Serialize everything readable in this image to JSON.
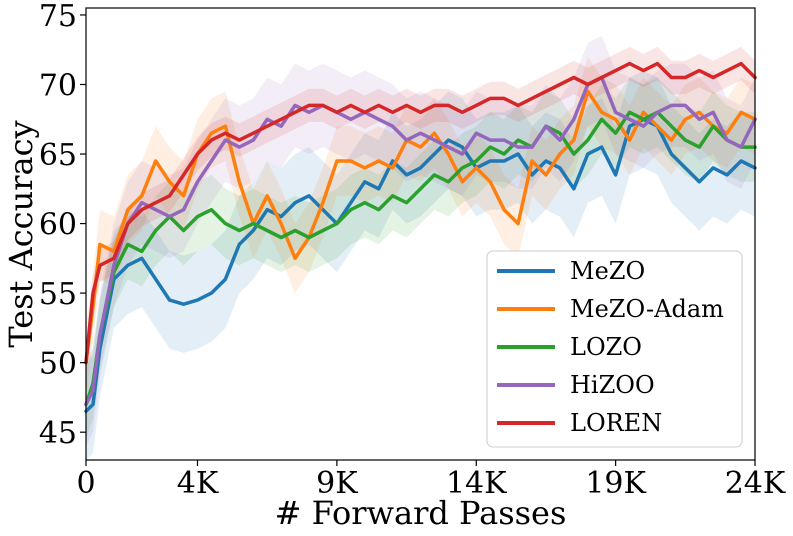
{
  "chart_data": {
    "type": "line",
    "title": "",
    "xlabel": "# Forward Passes",
    "ylabel": "Test Accuracy",
    "xlim": [
      0,
      24000
    ],
    "ylim": [
      43,
      75.5
    ],
    "xticks": [
      {
        "value": 0,
        "label": "0"
      },
      {
        "value": 4000,
        "label": "4K"
      },
      {
        "value": 9000,
        "label": "9K"
      },
      {
        "value": 14000,
        "label": "14K"
      },
      {
        "value": 19000,
        "label": "19K"
      },
      {
        "value": 24000,
        "label": "24K"
      }
    ],
    "yticks": [
      {
        "value": 45,
        "label": "45"
      },
      {
        "value": 50,
        "label": "50"
      },
      {
        "value": 55,
        "label": "55"
      },
      {
        "value": 60,
        "label": "60"
      },
      {
        "value": 65,
        "label": "65"
      },
      {
        "value": 70,
        "label": "70"
      },
      {
        "value": 75,
        "label": "75"
      }
    ],
    "grid": false,
    "legend_position": "lower-right",
    "x": [
      0,
      250,
      500,
      1000,
      1500,
      2000,
      2500,
      3000,
      3500,
      4000,
      4500,
      5000,
      5500,
      6000,
      6500,
      7000,
      7500,
      8000,
      8500,
      9000,
      9500,
      10000,
      10500,
      11000,
      11500,
      12000,
      12500,
      13000,
      13500,
      14000,
      14500,
      15000,
      15500,
      16000,
      16500,
      17000,
      17500,
      18000,
      18500,
      19000,
      19500,
      20000,
      20500,
      21000,
      21500,
      22000,
      22500,
      23000,
      23500,
      24000
    ],
    "series": [
      {
        "name": "MeZO",
        "color": "#1f77b4",
        "band": 3.5,
        "values": [
          46.5,
          47.0,
          51.0,
          56.0,
          57.0,
          57.5,
          56.0,
          54.5,
          54.2,
          54.5,
          55.0,
          56.0,
          58.5,
          59.5,
          61.0,
          60.5,
          61.5,
          62.0,
          61.0,
          60.0,
          61.5,
          63.0,
          62.5,
          64.5,
          63.5,
          64.0,
          65.0,
          66.0,
          65.5,
          64.0,
          64.5,
          64.5,
          65.0,
          63.5,
          64.5,
          64.0,
          62.5,
          65.0,
          65.5,
          63.5,
          67.0,
          67.5,
          67.0,
          65.0,
          64.0,
          63.0,
          64.0,
          63.5,
          64.5,
          64.0
        ]
      },
      {
        "name": "MeZO-Adam",
        "color": "#ff7f0e",
        "band": 2.5,
        "values": [
          50.0,
          54.0,
          58.5,
          58.0,
          61.0,
          62.0,
          64.5,
          63.0,
          62.0,
          65.0,
          66.5,
          67.0,
          63.0,
          60.0,
          62.0,
          60.0,
          57.5,
          59.0,
          61.5,
          64.5,
          64.5,
          64.0,
          64.5,
          64.0,
          66.0,
          65.5,
          66.5,
          65.0,
          63.0,
          64.0,
          63.0,
          61.0,
          60.0,
          64.5,
          63.5,
          65.0,
          66.0,
          69.5,
          68.0,
          67.5,
          66.0,
          68.0,
          67.0,
          66.0,
          67.5,
          68.0,
          67.0,
          66.5,
          68.0,
          67.5
        ]
      },
      {
        "name": "LOZO",
        "color": "#2ca02c",
        "band": 2.5,
        "values": [
          47.0,
          48.5,
          52.0,
          56.5,
          58.5,
          58.0,
          59.5,
          60.5,
          59.5,
          60.5,
          61.0,
          60.0,
          59.5,
          60.0,
          59.5,
          59.0,
          59.5,
          59.0,
          59.5,
          60.0,
          61.0,
          61.5,
          61.0,
          62.0,
          61.5,
          62.5,
          63.5,
          63.0,
          64.0,
          64.5,
          65.5,
          65.0,
          66.0,
          65.5,
          67.0,
          66.5,
          65.0,
          66.0,
          67.5,
          66.5,
          68.0,
          67.5,
          68.0,
          67.0,
          66.0,
          65.5,
          67.0,
          66.0,
          65.5,
          65.5
        ]
      },
      {
        "name": "HiZOO",
        "color": "#9467bd",
        "band": 3.0,
        "values": [
          47.0,
          48.0,
          52.0,
          57.0,
          60.0,
          61.5,
          61.0,
          60.5,
          61.0,
          63.0,
          64.5,
          66.0,
          65.5,
          66.0,
          67.5,
          67.0,
          68.5,
          68.0,
          68.5,
          68.0,
          67.5,
          68.0,
          67.5,
          67.0,
          66.0,
          66.5,
          66.0,
          65.5,
          65.0,
          66.5,
          66.0,
          66.0,
          65.5,
          65.5,
          67.0,
          66.0,
          67.5,
          70.0,
          70.5,
          68.0,
          67.5,
          67.0,
          68.0,
          68.5,
          68.5,
          67.5,
          68.0,
          66.0,
          65.5,
          67.5
        ]
      },
      {
        "name": "LOREN",
        "color": "#d62728",
        "band": 1.2,
        "values": [
          50.0,
          55.0,
          57.0,
          57.5,
          60.0,
          61.0,
          61.5,
          62.0,
          63.5,
          65.0,
          66.0,
          66.5,
          66.0,
          66.5,
          67.0,
          67.5,
          68.0,
          68.5,
          68.5,
          68.0,
          68.5,
          68.0,
          68.5,
          68.0,
          68.5,
          68.0,
          68.5,
          68.5,
          68.0,
          68.5,
          69.0,
          69.0,
          68.5,
          69.0,
          69.5,
          70.0,
          70.5,
          70.0,
          70.5,
          71.0,
          71.5,
          71.0,
          71.5,
          70.5,
          70.5,
          71.0,
          70.5,
          71.0,
          71.5,
          70.5
        ]
      }
    ]
  }
}
